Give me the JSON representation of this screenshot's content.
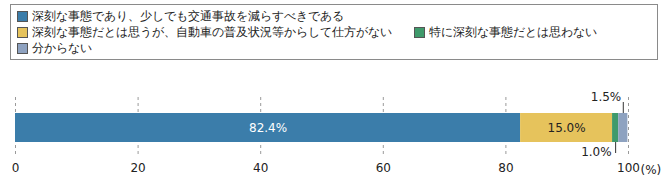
{
  "chart_data": {
    "type": "bar",
    "orientation": "horizontal",
    "stacked": true,
    "data_labels": true,
    "grid": true,
    "legend": "top",
    "categories": [
      null
    ],
    "x_label": "(%)",
    "xlim": [
      0,
      100
    ],
    "xticks": [
      0,
      20,
      40,
      60,
      80,
      100
    ],
    "series": [
      {
        "name": "深刻な事態であり、少しでも交通事故を減らすべきである",
        "color": "#3b7daa",
        "values": [
          82.4
        ],
        "value_labels": [
          "82.4%"
        ]
      },
      {
        "name": "深刻な事態だとは思うが、自動車の普及状況等からして仕方がない",
        "color": "#e6c35c",
        "values": [
          15.0
        ],
        "value_labels": [
          "15.0%"
        ]
      },
      {
        "name": "特に深刻な事態だとは思わない",
        "color": "#3f9a6b",
        "values": [
          1.0
        ],
        "value_labels": [
          "1.0%"
        ]
      },
      {
        "name": "分からない",
        "color": "#8ea2c0",
        "values": [
          1.5
        ],
        "value_labels": [
          "1.5%"
        ]
      }
    ]
  }
}
